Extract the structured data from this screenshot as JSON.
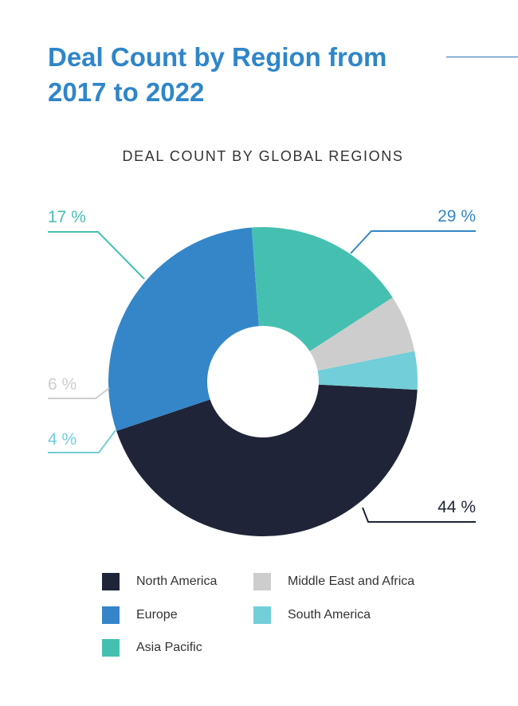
{
  "header": {
    "title_line1": "Deal Count by Region from",
    "title_line2": "2017 to 2022"
  },
  "chart_data": {
    "type": "pie",
    "donut": true,
    "title": "DEAL COUNT BY GLOBAL REGIONS",
    "categories": [
      "North America",
      "Europe",
      "Asia Pacific",
      "Middle East and Africa",
      "South America"
    ],
    "values": [
      44,
      29,
      17,
      6,
      4
    ],
    "labels": [
      "44 %",
      "29 %",
      "17 %",
      "6 %",
      "4 %"
    ],
    "colors": [
      "#1f2438",
      "#3486c8",
      "#45c0b0",
      "#cdcdcd",
      "#72ced8"
    ],
    "legend": "bottom"
  }
}
